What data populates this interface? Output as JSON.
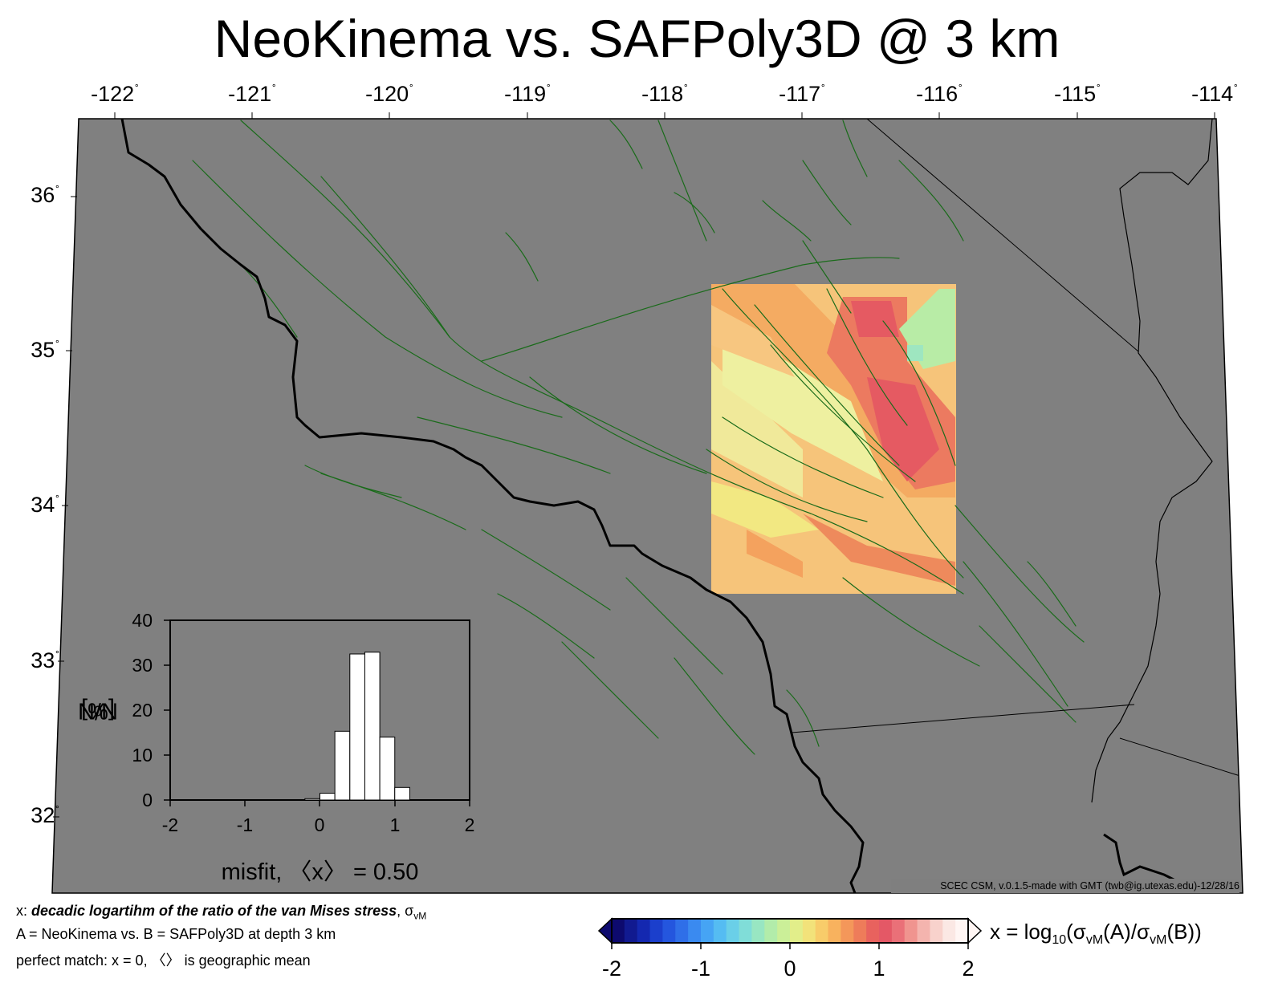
{
  "title": "NeoKinema vs. SAFPoly3D @ 3 km",
  "map": {
    "lon_labels": [
      "-122",
      "-121",
      "-120",
      "-119",
      "-118",
      "-117",
      "-116",
      "-115",
      "-114"
    ],
    "lat_labels": [
      "36",
      "35",
      "34",
      "33",
      "32"
    ],
    "degree_symbol": "˚",
    "lon_range": [
      -122,
      -114
    ],
    "lat_range": [
      31.5,
      36.5
    ],
    "land_color": "#808080",
    "fault_color": "#1a6b1a",
    "coastline_color": "#000000",
    "credit": "SCEC CSM, v.0.1.5-made with GMT (twb@ig.utexas.edu)-12/28/16"
  },
  "notes": {
    "line1_prefix": "x: ",
    "line1_emph": "decadic logartihm of the ratio of the van Mises stress",
    "line1_suffix": ", σ",
    "line1_sub": "vM",
    "line2": "A = NeoKinema vs.  B = SAFPoly3D at depth 3 km",
    "line3": "perfect match: x = 0, 〈〉 is geographic mean"
  },
  "colorbar": {
    "ticks": [
      "-2",
      "-1",
      "0",
      "1",
      "2"
    ],
    "range": [
      -2,
      2
    ],
    "colors": [
      "#0d0a6e",
      "#111a90",
      "#1428b0",
      "#1b3fcc",
      "#2456de",
      "#2f6fe8",
      "#3a8af0",
      "#46a4f4",
      "#55bcf2",
      "#6acfe8",
      "#80ddd8",
      "#98e6c2",
      "#b2ecaa",
      "#cbef98",
      "#e2ee8a",
      "#f2e27a",
      "#f8cc6a",
      "#f8b25e",
      "#f4975a",
      "#ee7c5a",
      "#e8625e",
      "#e45866",
      "#ea7078",
      "#f0948f",
      "#f4b4ae",
      "#f8d2cc",
      "#fbe8e4",
      "#fff6f4"
    ],
    "title_prefix": "x = log",
    "title_sub1": "10",
    "title_mid": "(σ",
    "title_sub2": "vM",
    "title_mid2": "(A)/σ",
    "title_sub3": "vM",
    "title_suffix": "(B))"
  },
  "histogram": {
    "x_ticks": [
      "-2",
      "-1",
      "0",
      "1",
      "2"
    ],
    "y_ticks": [
      "40",
      "30",
      "20",
      "10",
      "0"
    ],
    "ylabel_prefix": "N/N",
    "ylabel_sub": "0",
    "ylabel_suffix": " [%]",
    "xlabel": "misfit, 〈x〉 = 0.50"
  },
  "chart_data": {
    "type": "bar",
    "title": "",
    "xlabel": "misfit, 〈x〉 = 0.50",
    "ylabel": "N/N0 [%]",
    "xlim": [
      -2,
      2
    ],
    "ylim": [
      0,
      40
    ],
    "bin_width": 0.2,
    "bins": [
      {
        "from": -0.2,
        "to": 0.0,
        "value": 0.3
      },
      {
        "from": 0.0,
        "to": 0.2,
        "value": 1.5
      },
      {
        "from": 0.2,
        "to": 0.4,
        "value": 15.3
      },
      {
        "from": 0.4,
        "to": 0.6,
        "value": 32.5
      },
      {
        "from": 0.6,
        "to": 0.8,
        "value": 32.9
      },
      {
        "from": 0.8,
        "to": 1.0,
        "value": 14.0
      },
      {
        "from": 1.0,
        "to": 1.2,
        "value": 2.8
      }
    ],
    "grid": false
  }
}
